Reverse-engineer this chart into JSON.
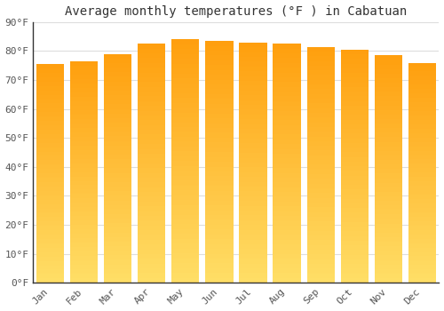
{
  "title": "Average monthly temperatures (°F ) in Cabatuan",
  "months": [
    "Jan",
    "Feb",
    "Mar",
    "Apr",
    "May",
    "Jun",
    "Jul",
    "Aug",
    "Sep",
    "Oct",
    "Nov",
    "Dec"
  ],
  "values": [
    75.5,
    76.5,
    79.0,
    82.5,
    84.0,
    83.5,
    83.0,
    82.5,
    81.5,
    80.5,
    78.5,
    76.0
  ],
  "bar_color_top": "#FFA500",
  "bar_color_bottom": "#FFD070",
  "background_color": "#FFFFFF",
  "plot_bg_color": "#FFFFFF",
  "grid_color": "#DDDDDD",
  "axis_color": "#333333",
  "text_color": "#555555",
  "title_color": "#333333",
  "ylim": [
    0,
    90
  ],
  "ytick_step": 10,
  "title_fontsize": 10,
  "tick_fontsize": 8,
  "bar_width": 0.82
}
